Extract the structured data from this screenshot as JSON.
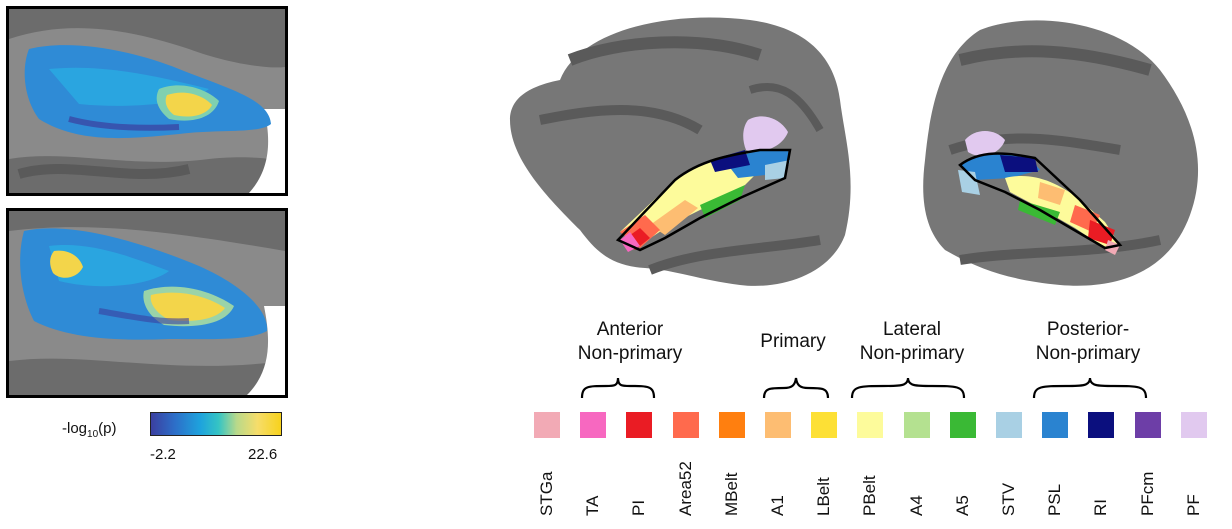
{
  "colorbar": {
    "label_prefix": "-log",
    "label_sub": "10",
    "label_suffix": "(p)",
    "min": "-2.2",
    "max": "22.6"
  },
  "groups": [
    {
      "name": "Anterior Non-primary",
      "line1": "Anterior",
      "line2": "Non-primary"
    },
    {
      "name": "Primary",
      "line1": "Primary",
      "line2": ""
    },
    {
      "name": "Lateral Non-primary",
      "line1": "Lateral",
      "line2": "Non-primary"
    },
    {
      "name": "Posterior Non-primary",
      "line1": "Posterior-",
      "line2": "Non-primary"
    }
  ],
  "regions": [
    {
      "label": "STGa",
      "color": "#f2aab5"
    },
    {
      "label": "TA",
      "color": "#f768c0"
    },
    {
      "label": "PI",
      "color": "#ea1c24"
    },
    {
      "label": "Area52",
      "color": "#ff6a4d"
    },
    {
      "label": "MBelt",
      "color": "#ff7f0f"
    },
    {
      "label": "A1",
      "color": "#fdbd72"
    },
    {
      "label": "LBelt",
      "color": "#fde035"
    },
    {
      "label": "PBelt",
      "color": "#fdfb9b"
    },
    {
      "label": "A4",
      "color": "#b4e190"
    },
    {
      "label": "A5",
      "color": "#3ab935"
    },
    {
      "label": "STV",
      "color": "#a9d0e4"
    },
    {
      "label": "PSL",
      "color": "#2a83d0"
    },
    {
      "label": "RI",
      "color": "#0b0f7e"
    },
    {
      "label": "PFcm",
      "color": "#6d3ea7"
    },
    {
      "label": "PF",
      "color": "#e1c9ef"
    }
  ]
}
